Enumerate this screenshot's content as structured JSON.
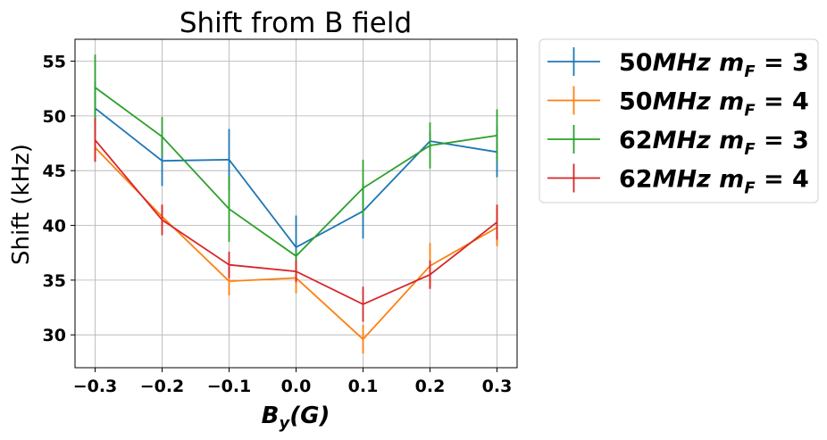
{
  "chart_data": {
    "type": "line",
    "title": "Shift from B field",
    "xlabel": {
      "base": "B",
      "sub": "y",
      "rest": "(G)"
    },
    "ylabel": "Shift (kHz)",
    "x": [
      -0.3,
      -0.2,
      -0.1,
      0.0,
      0.1,
      0.2,
      0.3
    ],
    "xticks": [
      "−0.3",
      "−0.2",
      "−0.1",
      "0.0",
      "0.1",
      "0.2",
      "0.3"
    ],
    "yticks": [
      "30",
      "35",
      "40",
      "45",
      "50",
      "55"
    ],
    "ytick_values": [
      30,
      35,
      40,
      45,
      50,
      55
    ],
    "xlim": [
      -0.33,
      0.33
    ],
    "ylim": [
      27,
      57
    ],
    "grid": true,
    "legend_position": "outside-right",
    "series": [
      {
        "name": "50MHz m_F = 3",
        "legend": {
          "freq": "50",
          "unit": "MHz",
          "mf": "3"
        },
        "color": "#1f77b4",
        "values": [
          50.7,
          45.9,
          46.0,
          38.0,
          41.3,
          47.7,
          46.7
        ],
        "errors": [
          2.4,
          2.3,
          2.8,
          2.9,
          2.5,
          0.8,
          2.3
        ]
      },
      {
        "name": "50MHz m_F = 4",
        "legend": {
          "freq": "50",
          "unit": "MHz",
          "mf": "4"
        },
        "color": "#ff7f0e",
        "values": [
          47.1,
          40.8,
          34.9,
          35.2,
          29.6,
          36.3,
          39.8
        ],
        "errors": [
          1.2,
          1.0,
          1.3,
          1.4,
          1.3,
          2.1,
          1.7
        ]
      },
      {
        "name": "62MHz m_F = 3",
        "legend": {
          "freq": "62",
          "unit": "MHz",
          "mf": "3"
        },
        "color": "#2ca02c",
        "values": [
          52.6,
          48.1,
          41.5,
          37.2,
          43.4,
          47.3,
          48.2
        ],
        "errors": [
          3.0,
          1.8,
          3.0,
          0.5,
          2.6,
          2.1,
          2.4
        ]
      },
      {
        "name": "62MHz m_F = 4",
        "legend": {
          "freq": "62",
          "unit": "MHz",
          "mf": "4"
        },
        "color": "#d62728",
        "values": [
          47.8,
          40.5,
          36.4,
          35.8,
          32.8,
          35.5,
          40.3
        ],
        "errors": [
          2.0,
          1.4,
          1.2,
          1.0,
          1.6,
          1.3,
          1.6
        ]
      }
    ]
  }
}
